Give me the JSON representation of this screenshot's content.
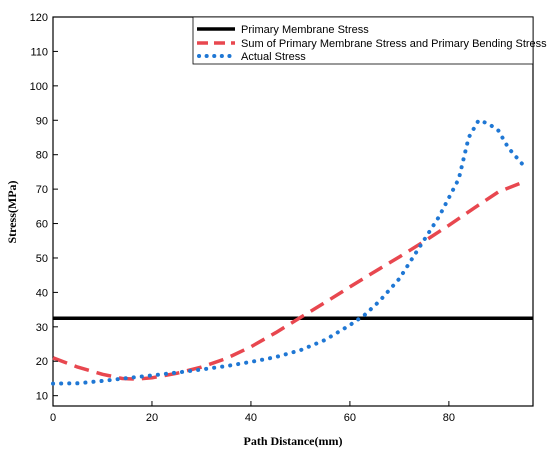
{
  "chart_data": {
    "type": "line",
    "title": "",
    "xlabel": "Path Distance(mm)",
    "ylabel": "Stress(MPa)",
    "xlim": [
      0,
      97
    ],
    "ylim": [
      7,
      120
    ],
    "xticks": [
      0,
      20,
      40,
      60,
      80
    ],
    "yticks": [
      10,
      20,
      30,
      40,
      50,
      60,
      70,
      80,
      90,
      100,
      110,
      120
    ],
    "grid": false,
    "legend_position": "top-right",
    "series": [
      {
        "name": "Primary Membrane Stress",
        "color": "#000000",
        "style": "solid",
        "x": [
          0,
          97
        ],
        "y": [
          32.5,
          32.5
        ]
      },
      {
        "name": "Sum of Primary Membrane Stress and Primary Bending Stress",
        "color": "#e8474f",
        "style": "dashed",
        "x": [
          0,
          5,
          10,
          14,
          17,
          20,
          25,
          30,
          35,
          40,
          45,
          50,
          55,
          60,
          65,
          70,
          75,
          80,
          85,
          90,
          95
        ],
        "y": [
          21,
          18.3,
          16.2,
          15,
          14.8,
          15.2,
          16.5,
          18.3,
          20.8,
          24.2,
          28.3,
          32.7,
          37.1,
          41.6,
          46,
          50.3,
          54.8,
          59.5,
          64.4,
          69.2,
          72
        ]
      },
      {
        "name": "Actual Stress",
        "color": "#1f77d4",
        "style": "dotted",
        "x": [
          0,
          5,
          10,
          15,
          20,
          25,
          30,
          35,
          40,
          45,
          50,
          55,
          60,
          63,
          66,
          70,
          74,
          78,
          82,
          84,
          86,
          88,
          90,
          92,
          95
        ],
        "y": [
          13.5,
          13.6,
          14.3,
          15.1,
          15.9,
          16.7,
          17.6,
          18.6,
          19.8,
          21.2,
          23.2,
          26.2,
          30.5,
          33.5,
          37.5,
          44,
          53,
          62,
          73,
          85,
          90,
          89,
          87,
          82,
          77
        ]
      }
    ]
  }
}
